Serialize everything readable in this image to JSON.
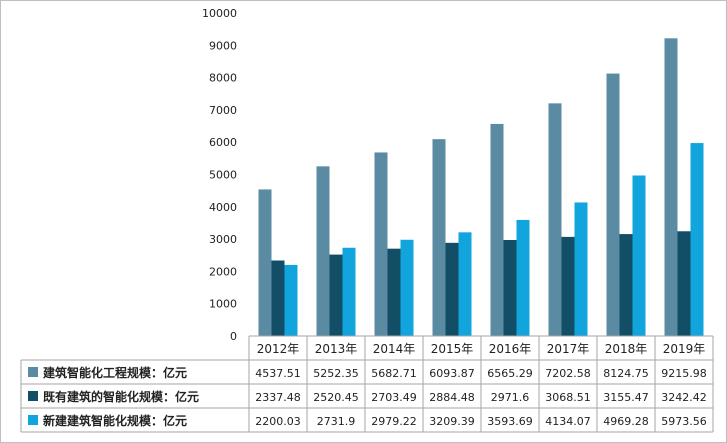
{
  "chart_data": {
    "type": "bar",
    "categories": [
      "2012年",
      "2013年",
      "2014年",
      "2015年",
      "2016年",
      "2017年",
      "2018年",
      "2019年"
    ],
    "series": [
      {
        "name": "建筑智能化工程规模：亿元",
        "color": "#5a8ba3",
        "values": [
          4537.51,
          5252.35,
          5682.71,
          6093.87,
          6565.29,
          7202.58,
          8124.75,
          9215.98
        ],
        "labels": [
          "4537.51",
          "5252.35",
          "5682.71",
          "6093.87",
          "6565.29",
          "7202.58",
          "8124.75",
          "9215.98"
        ]
      },
      {
        "name": "既有建筑的智能化规模：亿元",
        "color": "#124e66",
        "values": [
          2337.48,
          2520.45,
          2703.49,
          2884.48,
          2971.6,
          3068.51,
          3155.47,
          3242.42
        ],
        "labels": [
          "2337.48",
          "2520.45",
          "2703.49",
          "2884.48",
          "2971.6",
          "3068.51",
          "3155.47",
          "3242.42"
        ]
      },
      {
        "name": "新建建筑智能化规模：亿元",
        "color": "#12a4dd",
        "values": [
          2200.03,
          2731.9,
          2979.22,
          3209.39,
          3593.69,
          4134.07,
          4969.28,
          5973.56
        ],
        "labels": [
          "2200.03",
          "2731.9",
          "2979.22",
          "3209.39",
          "3593.69",
          "4134.07",
          "4969.28",
          "5973.56"
        ]
      }
    ],
    "ylim": [
      0,
      10000
    ],
    "yticks": [
      "0",
      "1000",
      "2000",
      "3000",
      "4000",
      "5000",
      "6000",
      "7000",
      "8000",
      "9000",
      "10000"
    ],
    "grid": false,
    "legend": "data-table"
  }
}
